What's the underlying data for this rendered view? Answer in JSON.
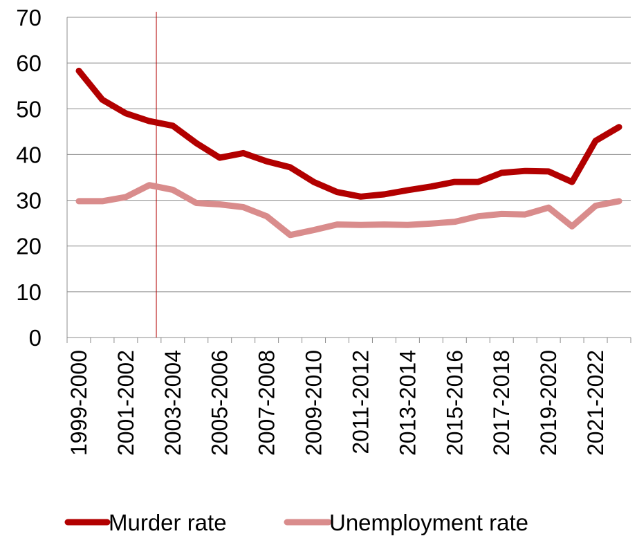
{
  "chart_data": {
    "type": "line",
    "categories": [
      "1999-2000",
      "2000-2001",
      "2001-2002",
      "2002-2003",
      "2003-2004",
      "2004-2005",
      "2005-2006",
      "2006-2007",
      "2007-2008",
      "2008-2009",
      "2009-2010",
      "2010-2011",
      "2011-2012",
      "2012-2013",
      "2013-2014",
      "2014-2015",
      "2015-2016",
      "2016-2017",
      "2017-2018",
      "2018-2019",
      "2019-2020",
      "2020-2021",
      "2021-2022",
      "2022-2023"
    ],
    "x_tick_labels": [
      "1999-2000",
      "2001-2002",
      "2003-2004",
      "2005-2006",
      "2007-2008",
      "2009-2010",
      "2011-2012",
      "2013-2014",
      "2015-2016",
      "2017-2018",
      "2019-2020",
      "2021-2022"
    ],
    "series": [
      {
        "name": "Murder rate",
        "color": "#B20000",
        "values": [
          58.3,
          52.0,
          49.0,
          47.3,
          46.3,
          42.5,
          39.3,
          40.3,
          38.5,
          37.2,
          34.0,
          31.8,
          30.8,
          31.3,
          32.2,
          33.0,
          34.0,
          34.0,
          36.0,
          36.4,
          36.3,
          34.0,
          43.0,
          46.0
        ]
      },
      {
        "name": "Unemployment rate",
        "color": "#D98C8C",
        "values": [
          29.8,
          29.8,
          30.7,
          33.3,
          32.3,
          29.4,
          29.1,
          28.5,
          26.5,
          22.4,
          23.5,
          24.7,
          24.6,
          24.7,
          24.6,
          24.9,
          25.3,
          26.5,
          27.0,
          26.9,
          28.4,
          24.3,
          28.8,
          29.8
        ]
      }
    ],
    "ylim": [
      0,
      70
    ],
    "yticks": [
      0,
      10,
      20,
      30,
      40,
      50,
      60,
      70
    ],
    "ygrid": true,
    "xgrid": false,
    "marker_line_at_category_index": 3.3,
    "marker_line_color": "#B20000",
    "legend_position": "bottom"
  }
}
